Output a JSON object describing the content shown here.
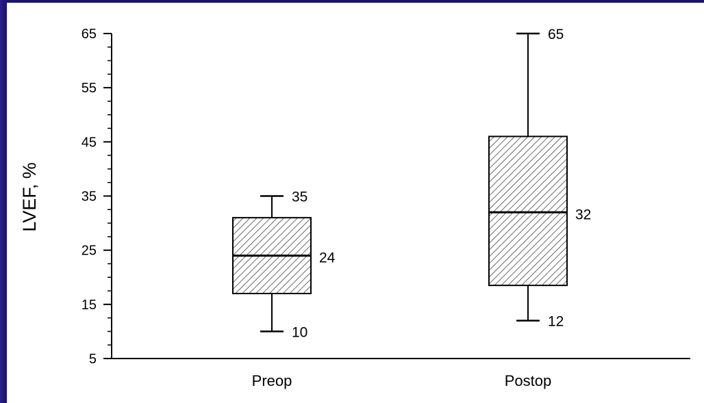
{
  "chart_data": {
    "type": "box",
    "ylabel": "LVEF, %",
    "xlabel": "",
    "ylim": [
      5,
      65
    ],
    "yticks": [
      "5",
      "15",
      "25",
      "35",
      "45",
      "55",
      "65"
    ],
    "categories": [
      "Preop",
      "Postop"
    ],
    "boxes": [
      {
        "category": "Preop",
        "min": 10,
        "q1": 17,
        "median": 24,
        "q3": 31,
        "max": 35,
        "labels": {
          "max": "35",
          "median": "24",
          "min": "10"
        }
      },
      {
        "category": "Postop",
        "min": 12,
        "q1": 18.5,
        "median": 32,
        "q3": 46,
        "max": 65,
        "labels": {
          "max": "65",
          "median": "32",
          "min": "12"
        }
      }
    ],
    "box_fill": "hatched",
    "grid": false
  },
  "colors": {
    "slide_background": "#1a1470",
    "panel_background": "#ffffff",
    "ink": "#000000"
  }
}
